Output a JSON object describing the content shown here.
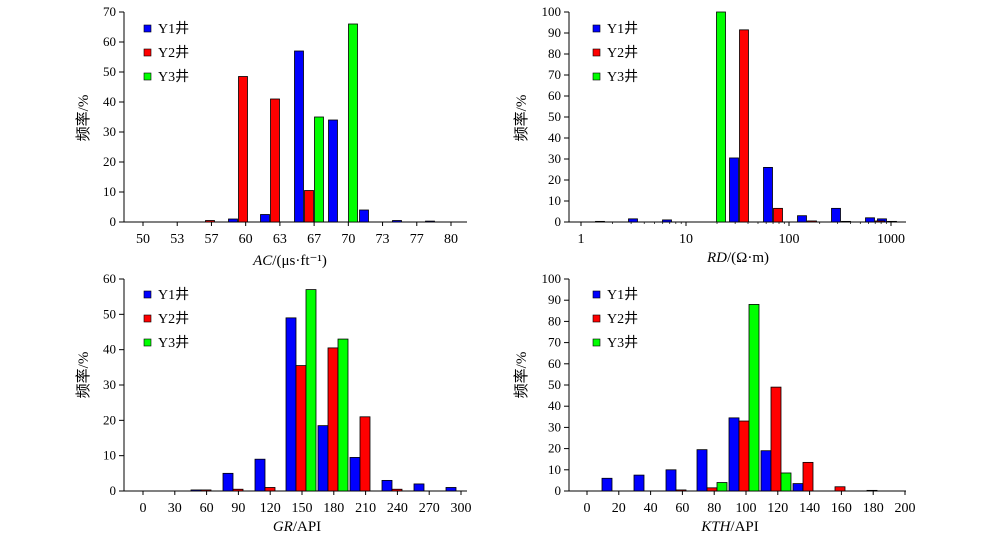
{
  "colors": {
    "Y1": "#0000ff",
    "Y2": "#ff0000",
    "Y3": "#00ff00"
  },
  "legend_labels": [
    "Y1井",
    "Y2井",
    "Y3井"
  ],
  "chart_data": [
    {
      "id": "ac",
      "type": "bar",
      "ylabel": "频率/%",
      "xlabel": "AC/(μs·ft⁻¹)",
      "xlabel_italic": "AC",
      "xlabel_rest": "/(μs·ft⁻¹)",
      "ylim": [
        0,
        70
      ],
      "yticks": [
        0,
        10,
        20,
        30,
        40,
        50,
        60,
        70
      ],
      "xticks": [
        "50",
        "53",
        "57",
        "60",
        "63",
        "67",
        "70",
        "73",
        "77",
        "80"
      ],
      "legend": [
        "Y1井",
        "Y2井",
        "Y3井"
      ],
      "legend_position": "top-left",
      "categories": [
        "57",
        "60",
        "63",
        "67",
        "70",
        "73",
        "77",
        "80"
      ],
      "series": [
        {
          "name": "Y1井",
          "values": [
            0,
            1,
            2.5,
            57,
            34,
            4,
            0.5,
            0.3
          ]
        },
        {
          "name": "Y2井",
          "values": [
            0.5,
            48.5,
            41,
            10.5,
            0,
            0,
            0,
            0
          ]
        },
        {
          "name": "Y3井",
          "values": [
            0,
            0,
            0,
            35,
            66,
            0,
            0,
            0
          ]
        }
      ]
    },
    {
      "id": "rd",
      "type": "bar",
      "ylabel": "频率/%",
      "xlabel": "RD/(Ω·m)",
      "xlabel_italic": "RD",
      "xlabel_rest": "/(Ω·m)",
      "ylim": [
        0,
        100
      ],
      "yticks": [
        0,
        10,
        20,
        30,
        40,
        50,
        60,
        70,
        80,
        90,
        100
      ],
      "xticks": [
        "1",
        "10",
        "100",
        "1000"
      ],
      "log_x": true,
      "legend": [
        "Y1井",
        "Y2井",
        "Y3井"
      ],
      "legend_position": "top-left",
      "categories": [
        "1.6",
        "3.2",
        "6.4",
        "12.8",
        "25.6",
        "51.2",
        "102.4",
        "204.8",
        "409.6",
        "819.2"
      ],
      "series": [
        {
          "name": "Y1井",
          "values": [
            0.3,
            1.5,
            1,
            0,
            30.5,
            26,
            3,
            6.5,
            2,
            1.5
          ]
        },
        {
          "name": "Y2井",
          "values": [
            0,
            0,
            0,
            0,
            91.5,
            6.5,
            0.5,
            0.3,
            0.5,
            0.3
          ]
        },
        {
          "name": "Y3井",
          "values": [
            0,
            0,
            0,
            100,
            0,
            0,
            0,
            0,
            0,
            0
          ]
        }
      ]
    },
    {
      "id": "gr",
      "type": "bar",
      "ylabel": "频率/%",
      "xlabel": "GR/API",
      "xlabel_italic": "GR",
      "xlabel_rest": "/API",
      "ylim": [
        0,
        60
      ],
      "yticks": [
        0,
        10,
        20,
        30,
        40,
        50,
        60
      ],
      "xticks": [
        "0",
        "30",
        "60",
        "90",
        "120",
        "150",
        "180",
        "210",
        "240",
        "270",
        "300"
      ],
      "legend": [
        "Y1井",
        "Y2井",
        "Y3井"
      ],
      "legend_position": "top-left",
      "categories": [
        "60",
        "90",
        "120",
        "150",
        "180",
        "210",
        "240",
        "270",
        "300"
      ],
      "series": [
        {
          "name": "Y1井",
          "values": [
            0.3,
            5,
            9,
            49,
            18.5,
            9.5,
            3,
            2,
            1
          ]
        },
        {
          "name": "Y2井",
          "values": [
            0.3,
            0.5,
            1,
            35.5,
            40.5,
            21,
            0.5,
            0,
            0
          ]
        },
        {
          "name": "Y3井",
          "values": [
            0,
            0,
            0,
            57,
            43,
            0,
            0,
            0,
            0
          ]
        }
      ]
    },
    {
      "id": "kth",
      "type": "bar",
      "ylabel": "频率/%",
      "xlabel": "KTH/API",
      "xlabel_italic": "KTH",
      "xlabel_rest": "/API",
      "ylim": [
        0,
        100
      ],
      "yticks": [
        0,
        10,
        20,
        30,
        40,
        50,
        60,
        70,
        80,
        90,
        100
      ],
      "xticks": [
        "0",
        "20",
        "40",
        "60",
        "80",
        "100",
        "120",
        "140",
        "160",
        "180",
        "200"
      ],
      "legend": [
        "Y1井",
        "Y2井",
        "Y3井"
      ],
      "legend_position": "top-left",
      "categories": [
        "20",
        "40",
        "60",
        "80",
        "100",
        "120",
        "140",
        "160",
        "180"
      ],
      "series": [
        {
          "name": "Y1井",
          "values": [
            6,
            7.5,
            10,
            19.5,
            34.5,
            19,
            3.5,
            0,
            0
          ]
        },
        {
          "name": "Y2井",
          "values": [
            0,
            0,
            0.5,
            1.5,
            33,
            49,
            13.5,
            2,
            0.3
          ]
        },
        {
          "name": "Y3井",
          "values": [
            0,
            0,
            0,
            4,
            88,
            8.5,
            0,
            0,
            0
          ]
        }
      ]
    }
  ]
}
